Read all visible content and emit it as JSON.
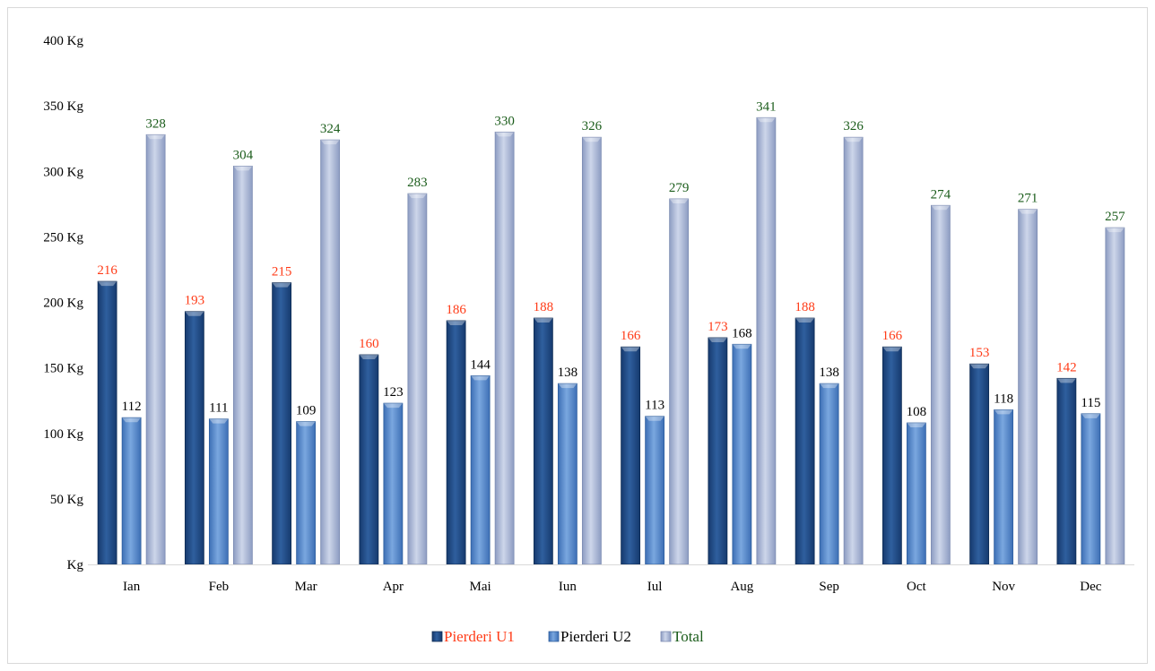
{
  "chart_data": {
    "type": "bar",
    "title": "",
    "xlabel": "",
    "ylabel": "",
    "ylim": [
      0,
      400
    ],
    "y_tick_values": [
      0,
      50,
      100,
      150,
      200,
      250,
      300,
      350,
      400
    ],
    "y_tick_labels": [
      "Kg",
      "50  Kg",
      "100  Kg",
      "150  Kg",
      "200  Kg",
      "250  Kg",
      "300  Kg",
      "350  Kg",
      "400  Kg"
    ],
    "grid": false,
    "legend_position": "bottom",
    "categories": [
      "Ian",
      "Feb",
      "Mar",
      "Apr",
      "Mai",
      "Iun",
      "Iul",
      "Aug",
      "Sep",
      "Oct",
      "Nov",
      "Dec"
    ],
    "series": [
      {
        "name": "Pierderi U1",
        "color": "#2a5590",
        "label_color": "#ff3b17",
        "values": [
          216,
          193,
          215,
          160,
          186,
          188,
          166,
          173,
          188,
          166,
          153,
          142
        ]
      },
      {
        "name": "Pierderi U2",
        "color": "#5b8fd0",
        "label_color": "#000000",
        "values": [
          112,
          111,
          109,
          123,
          144,
          138,
          113,
          168,
          138,
          108,
          118,
          115
        ]
      },
      {
        "name": "Total",
        "color": "#a9b6d6",
        "label_color": "#1a5c1a",
        "values": [
          328,
          304,
          324,
          283,
          330,
          326,
          279,
          341,
          326,
          274,
          271,
          257
        ]
      }
    ]
  }
}
